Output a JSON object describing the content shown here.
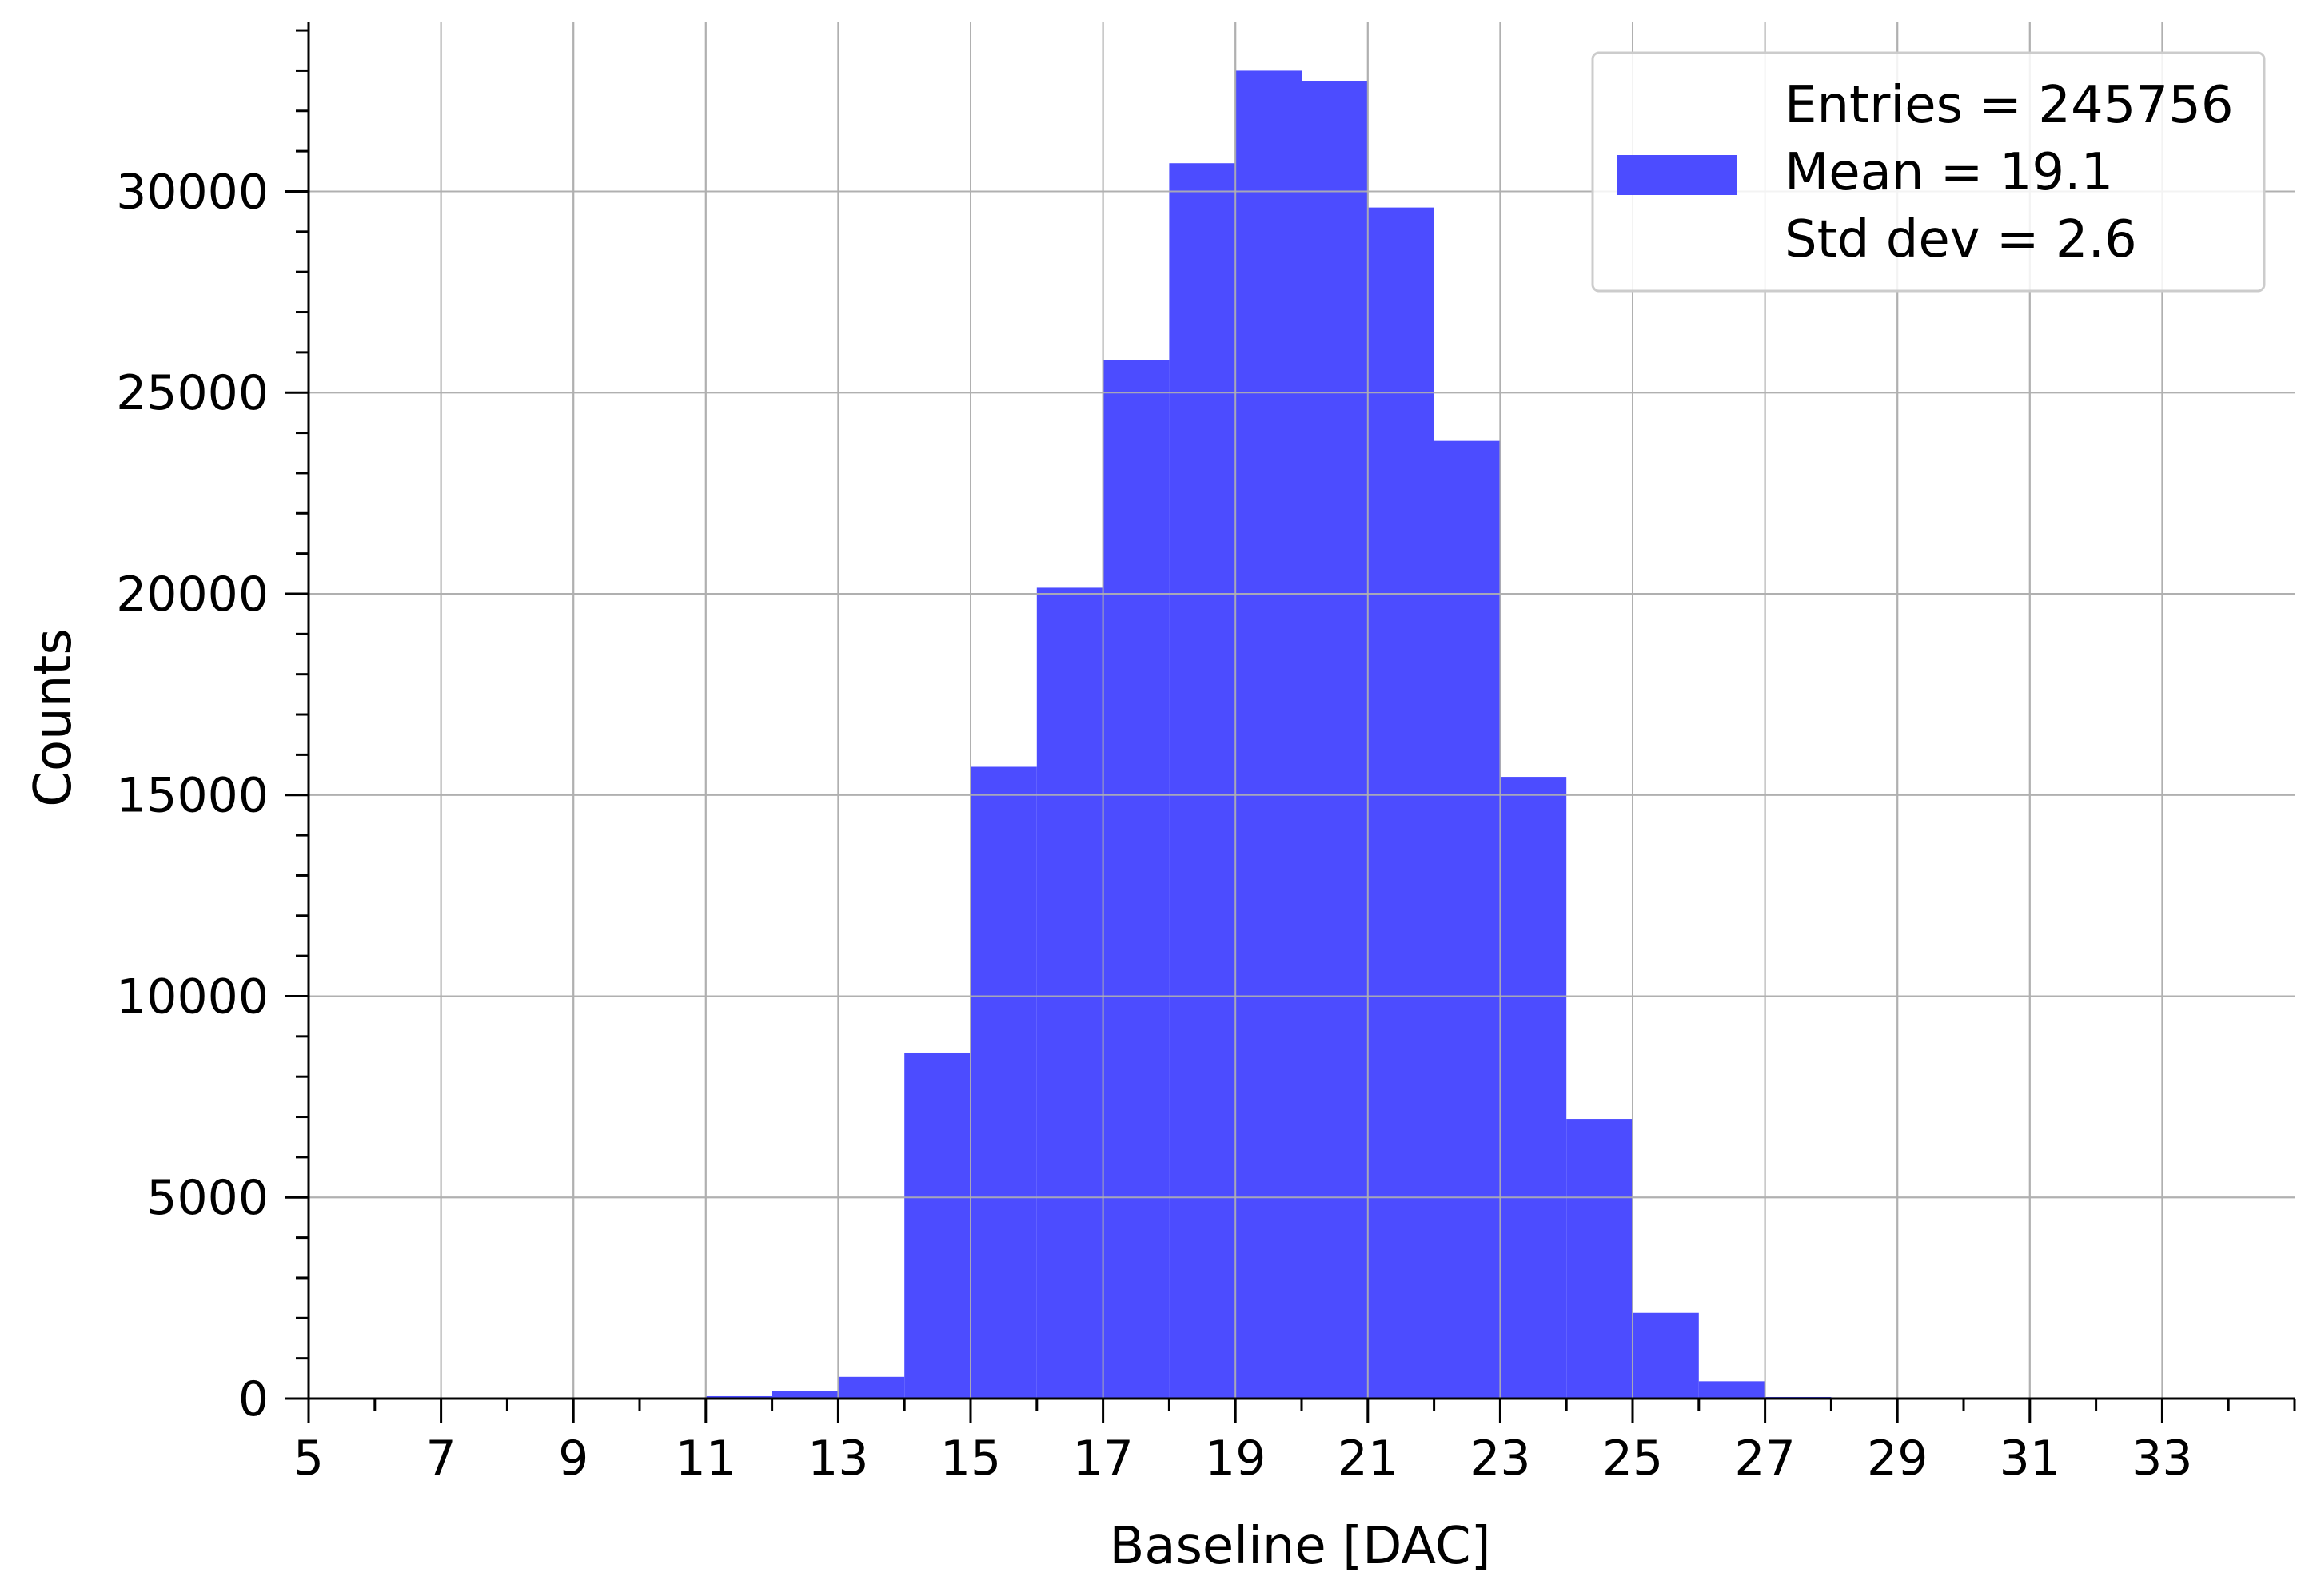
{
  "chart_data": {
    "type": "bar",
    "xlabel": "Baseline [DAC]",
    "ylabel": "Counts",
    "xlim": [
      5,
      35
    ],
    "ylim": [
      0,
      34200
    ],
    "grid": true,
    "legend_placement": "top-right",
    "bar_color": "#4c4cff",
    "bin_width": 1,
    "x_ticks": [
      5,
      7,
      9,
      11,
      13,
      15,
      17,
      19,
      21,
      23,
      25,
      27,
      29,
      31,
      33
    ],
    "y_ticks": [
      0,
      5000,
      10000,
      15000,
      20000,
      25000,
      30000
    ],
    "bins": [
      {
        "x": 11,
        "value": 60
      },
      {
        "x": 12,
        "value": 180
      },
      {
        "x": 13,
        "value": 540
      },
      {
        "x": 14,
        "value": 8600
      },
      {
        "x": 15,
        "value": 15700
      },
      {
        "x": 16,
        "value": 20150
      },
      {
        "x": 17,
        "value": 25800
      },
      {
        "x": 18,
        "value": 30700
      },
      {
        "x": 19,
        "value": 33000
      },
      {
        "x": 20,
        "value": 32750
      },
      {
        "x": 21,
        "value": 29600
      },
      {
        "x": 22,
        "value": 23800
      },
      {
        "x": 23,
        "value": 15450
      },
      {
        "x": 24,
        "value": 6950
      },
      {
        "x": 25,
        "value": 2130
      },
      {
        "x": 26,
        "value": 430
      },
      {
        "x": 27,
        "value": 40
      }
    ],
    "legend": {
      "entries_line": "Entries = 245756",
      "mean_line": "Mean = 19.1",
      "std_line": "Std dev = 2.6"
    }
  }
}
